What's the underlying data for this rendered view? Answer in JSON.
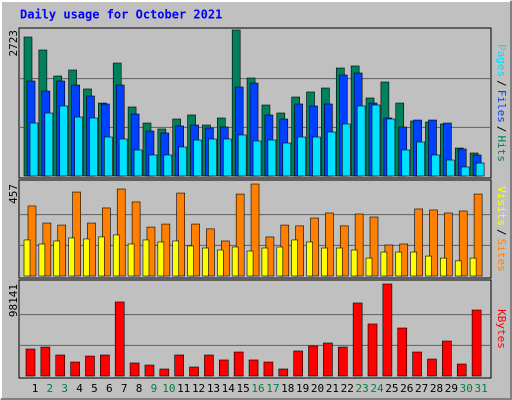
{
  "title": "Daily usage for October 2021",
  "legend_separator": "/",
  "chart_data": [
    {
      "type": "bar",
      "ylim": [
        0,
        2723
      ],
      "yticks": [
        2723
      ],
      "grid": true,
      "series": [
        {
          "name": "Hits",
          "color": "#00805c",
          "values": [
            2592,
            2350,
            1865,
            1977,
            1623,
            1361,
            2107,
            1287,
            988,
            877,
            1063,
            1138,
            951,
            1082,
            2723,
            1828,
            1324,
            1175,
            1473,
            1567,
            1641,
            2014,
            2052,
            1455,
            1753,
            1361,
            1026,
            1007,
            970,
            522,
            429
          ]
        },
        {
          "name": "Files",
          "color": "#0040ff",
          "values": [
            1772,
            1585,
            1772,
            1697,
            1492,
            1343,
            1697,
            1156,
            839,
            802,
            933,
            951,
            895,
            914,
            1660,
            1734,
            1138,
            1063,
            1343,
            1306,
            1343,
            1884,
            1921,
            1361,
            1082,
            914,
            1044,
            1044,
            988,
            504,
            392
          ]
        },
        {
          "name": "Pages",
          "color": "#00e0ff",
          "values": [
            988,
            1175,
            1306,
            1100,
            1082,
            727,
            690,
            485,
            392,
            392,
            541,
            671,
            690,
            690,
            765,
            653,
            671,
            615,
            727,
            727,
            821,
            970,
            1306,
            1324,
            1063,
            485,
            634,
            392,
            298,
            168,
            242
          ]
        }
      ]
    },
    {
      "type": "bar",
      "ylim": [
        0,
        457
      ],
      "yticks": [
        457
      ],
      "grid": true,
      "series": [
        {
          "name": "Sites",
          "color": "#ff8000",
          "values": [
            348,
            263,
            253,
            417,
            263,
            338,
            432,
            368,
            243,
            258,
            412,
            258,
            234,
            174,
            407,
            457,
            194,
            253,
            249,
            288,
            313,
            249,
            308,
            293,
            154,
            159,
            333,
            328,
            313,
            323,
            407
          ]
        },
        {
          "name": "Visits",
          "color": "#ffff00",
          "values": [
            179,
            159,
            174,
            189,
            184,
            194,
            204,
            159,
            179,
            169,
            174,
            149,
            139,
            129,
            144,
            124,
            139,
            144,
            179,
            169,
            139,
            139,
            129,
            89,
            119,
            119,
            119,
            99,
            89,
            75,
            89
          ]
        }
      ]
    },
    {
      "type": "bar",
      "ylim": [
        0,
        98141
      ],
      "yticks": [
        98141
      ],
      "grid": true,
      "categories": [
        "1",
        "2",
        "3",
        "4",
        "5",
        "6",
        "7",
        "8",
        "9",
        "10",
        "11",
        "12",
        "13",
        "14",
        "15",
        "16",
        "17",
        "18",
        "19",
        "20",
        "21",
        "22",
        "23",
        "24",
        "25",
        "26",
        "27",
        "28",
        "29",
        "30",
        "31"
      ],
      "category_colors": [
        "#000000",
        "#008040",
        "#008040",
        "#000000",
        "#000000",
        "#000000",
        "#000000",
        "#000000",
        "#008040",
        "#008040",
        "#000000",
        "#000000",
        "#000000",
        "#000000",
        "#000000",
        "#008040",
        "#008040",
        "#000000",
        "#000000",
        "#000000",
        "#000000",
        "#000000",
        "#008040",
        "#008040",
        "#000000",
        "#000000",
        "#000000",
        "#000000",
        "#000000",
        "#008040",
        "#008040"
      ],
      "series": [
        {
          "name": "KBytes",
          "color": "#ff0000",
          "values": [
            28800,
            30900,
            22400,
            14900,
            21300,
            22400,
            78960,
            13900,
            11700,
            7470,
            22400,
            9600,
            22400,
            17100,
            25600,
            17100,
            14900,
            7470,
            26700,
            32000,
            35200,
            30900,
            77900,
            55500,
            98141,
            51200,
            25600,
            18100,
            37300,
            12800,
            70400
          ]
        }
      ]
    }
  ]
}
